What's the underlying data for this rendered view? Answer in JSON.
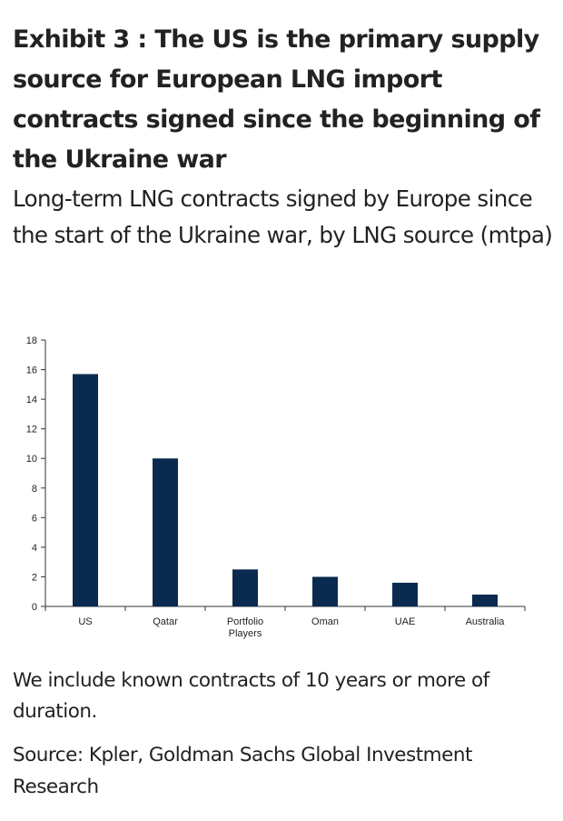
{
  "header": {
    "title": "Exhibit 3 : The US is the primary supply source for European LNG import contracts signed since the beginning of the Ukraine war",
    "subtitle": "Long-term LNG contracts signed by Europe since the start of the Ukraine war, by LNG source (mtpa)"
  },
  "chart_data": {
    "type": "bar",
    "categories": [
      "US",
      "Qatar",
      "Portfolio Players",
      "Oman",
      "UAE",
      "Australia"
    ],
    "category_lines": [
      [
        "US"
      ],
      [
        "Qatar"
      ],
      [
        "Portfolio",
        "Players"
      ],
      [
        "Oman"
      ],
      [
        "UAE"
      ],
      [
        "Australia"
      ]
    ],
    "values": [
      15.7,
      10.0,
      2.5,
      2.0,
      1.6,
      0.8
    ],
    "ylim": [
      0,
      18
    ],
    "yticks": [
      0,
      2,
      4,
      6,
      8,
      10,
      12,
      14,
      16,
      18
    ],
    "bar_color": "#0b2a4f",
    "grid": false,
    "legend": "none"
  },
  "footer": {
    "note": "We include known contracts of 10 years or more of duration.",
    "source": "Source: Kpler, Goldman Sachs Global Investment Research"
  }
}
